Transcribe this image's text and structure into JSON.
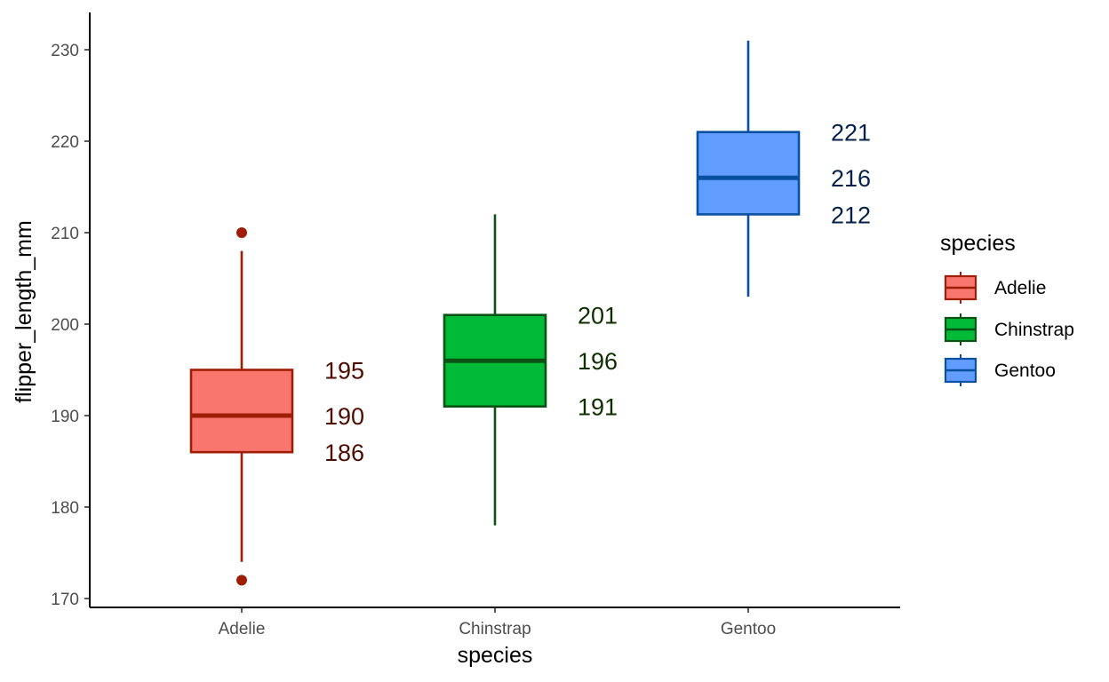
{
  "chart_data": {
    "type": "box",
    "xlabel": "species",
    "ylabel": "flipper_length_mm",
    "ylim": [
      169.7,
      233
    ],
    "yticks": [
      170,
      180,
      190,
      200,
      210,
      220,
      230
    ],
    "grid": false,
    "legend": {
      "title": "species",
      "placement": "right",
      "entries": [
        "Adelie",
        "Chinstrap",
        "Gentoo"
      ]
    },
    "categories": [
      "Adelie",
      "Chinstrap",
      "Gentoo"
    ],
    "series": [
      {
        "name": "Adelie",
        "whisker_low": 174,
        "q1": 186,
        "median": 190,
        "q3": 195,
        "whisker_high": 208,
        "outliers": [
          172,
          210
        ],
        "labels": [
          "195",
          "190",
          "186"
        ],
        "fill": "#f8766d",
        "line": "#9e1e05",
        "label_color": "#4e0b00"
      },
      {
        "name": "Chinstrap",
        "whisker_low": 178,
        "q1": 191,
        "median": 196,
        "q3": 201,
        "whisker_high": 212,
        "outliers": [],
        "labels": [
          "201",
          "196",
          "191"
        ],
        "fill": "#00ba38",
        "line": "#0b5314",
        "label_color": "#0e2e00"
      },
      {
        "name": "Gentoo",
        "whisker_low": 203,
        "q1": 212,
        "median": 216,
        "q3": 221,
        "whisker_high": 231,
        "outliers": [],
        "labels": [
          "221",
          "216",
          "212"
        ],
        "fill": "#619cff",
        "line": "#0950a0",
        "label_color": "#05214a"
      }
    ]
  }
}
